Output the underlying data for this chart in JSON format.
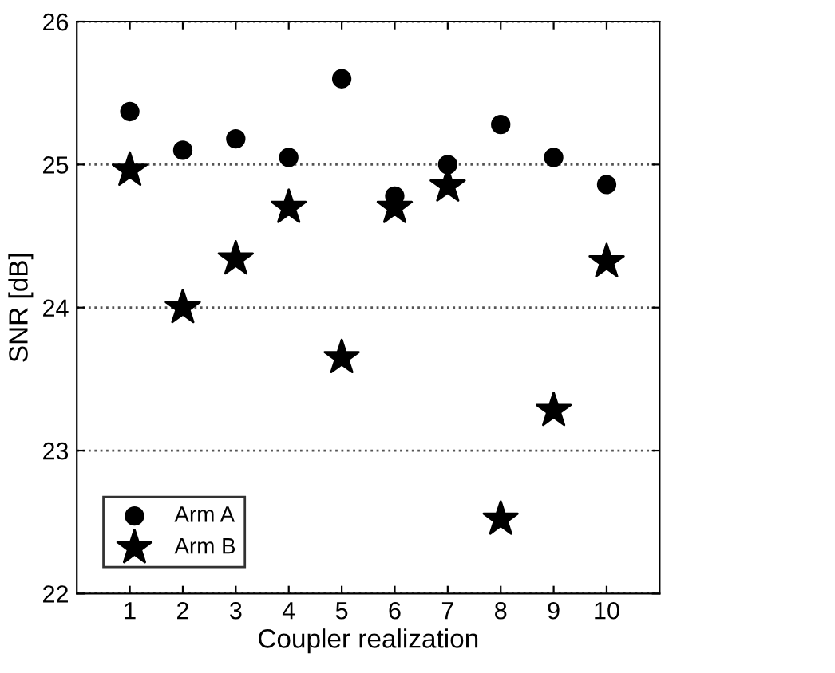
{
  "chart_data": {
    "type": "scatter",
    "xlabel": "Coupler realization",
    "ylabel": "SNR [dB]",
    "x": [
      1,
      2,
      3,
      4,
      5,
      6,
      7,
      8,
      9,
      10
    ],
    "series": [
      {
        "name": "Arm A",
        "color": "#000000",
        "marker": "circle",
        "values": [
          25.37,
          25.1,
          25.18,
          25.05,
          25.6,
          24.78,
          25.0,
          25.28,
          25.05,
          24.86
        ]
      },
      {
        "name": "Arm B",
        "color": "#000000",
        "marker": "star",
        "values": [
          24.96,
          24.0,
          24.34,
          24.7,
          23.65,
          24.7,
          24.85,
          22.52,
          23.28,
          24.32
        ]
      }
    ],
    "xlim": [
      0,
      11
    ],
    "xticks": [
      1,
      2,
      3,
      4,
      5,
      6,
      7,
      8,
      9,
      10
    ],
    "ylim": [
      22,
      26
    ],
    "yticks": [
      22,
      23,
      24,
      25,
      26
    ],
    "grid": "y",
    "legend": "bottom left"
  }
}
